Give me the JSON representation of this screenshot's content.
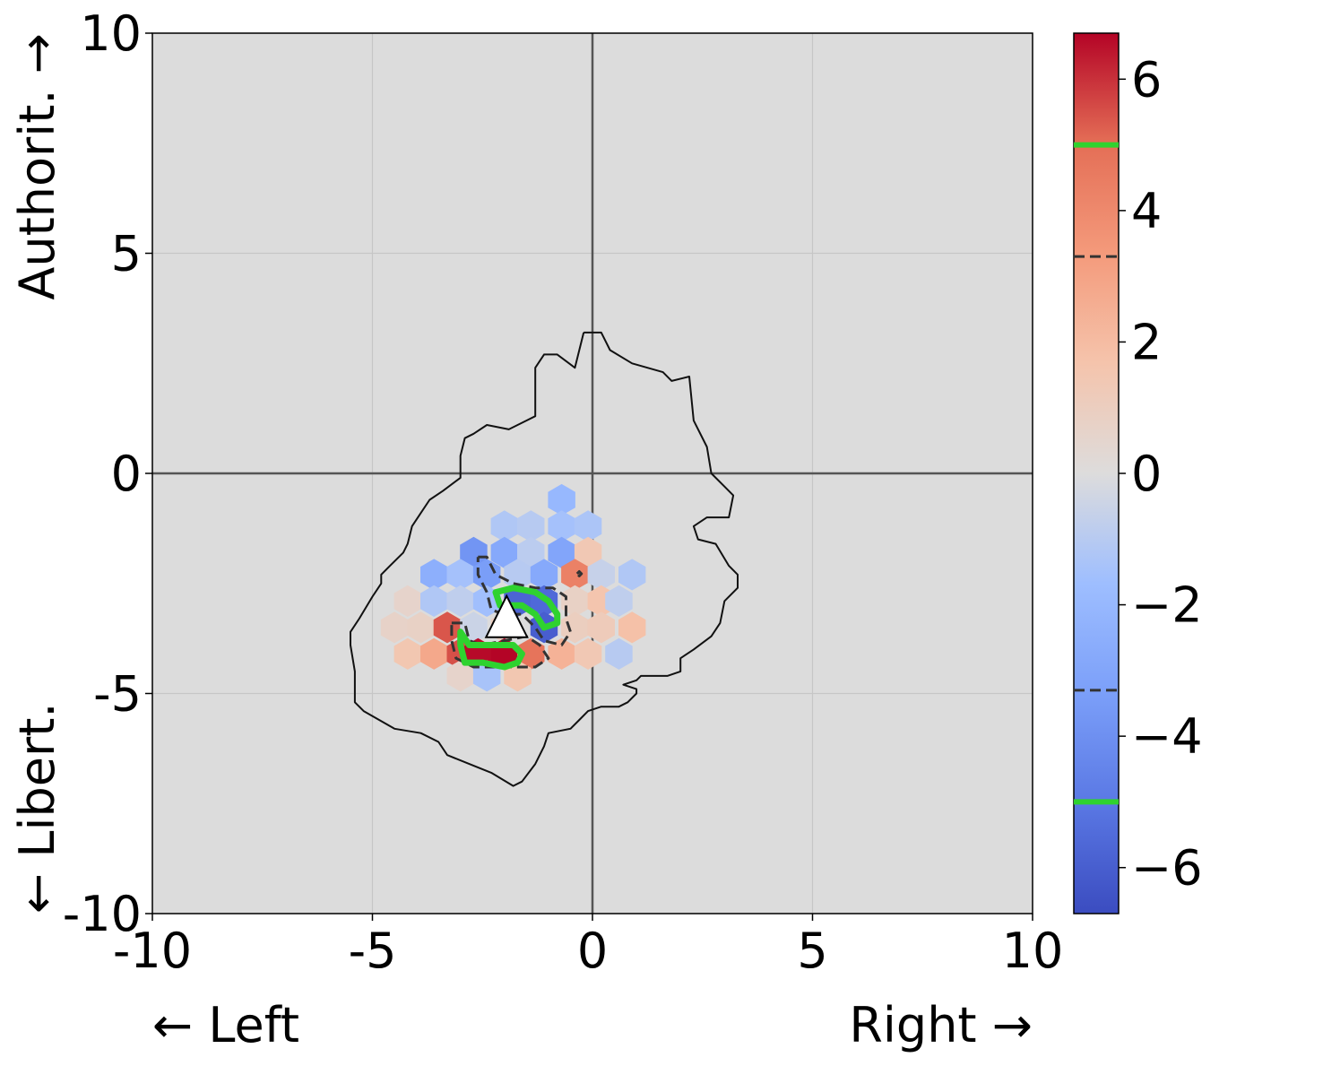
{
  "chart_data": {
    "type": "heatmap",
    "subtype": "hexbin",
    "title": "",
    "xlabel_left": "← Left",
    "xlabel_right": "Right →",
    "ylabel_top": "Authorit. →",
    "ylabel_bottom": "← Libert.",
    "xlim": [
      -10,
      10
    ],
    "ylim": [
      -10,
      10
    ],
    "x_ticks": [
      -10,
      -5,
      0,
      5,
      10
    ],
    "y_ticks": [
      -10,
      -5,
      0,
      5,
      10
    ],
    "x_tick_labels": [
      "-10",
      "-5",
      "0",
      "5",
      "10"
    ],
    "y_tick_labels": [
      "-10",
      "-5",
      "0",
      "5",
      "10"
    ],
    "grid": true,
    "background": "#dcdcdc",
    "colormap": "coolwarm",
    "colorbar": {
      "range": [
        -6.7,
        6.7
      ],
      "ticks": [
        6,
        4,
        2,
        0,
        -2,
        -4,
        -6
      ],
      "tick_labels": [
        "6",
        "4",
        "2",
        "0",
        "−2",
        "−4",
        "−6"
      ],
      "dashed_levels": [
        3.3,
        -3.3
      ],
      "green_levels": [
        5.0,
        -5.0
      ]
    },
    "hexbin": {
      "gridsize_dx": 0.62,
      "cells": [
        {
          "x": -0.7,
          "y": -0.6,
          "v": -2.0
        },
        {
          "x": -2.0,
          "y": -1.2,
          "v": -1.2
        },
        {
          "x": -1.4,
          "y": -1.2,
          "v": -1.0
        },
        {
          "x": -0.7,
          "y": -1.2,
          "v": -1.5
        },
        {
          "x": -0.1,
          "y": -1.2,
          "v": -1.3
        },
        {
          "x": -2.7,
          "y": -1.8,
          "v": -3.8
        },
        {
          "x": -2.0,
          "y": -1.8,
          "v": -2.8
        },
        {
          "x": -1.4,
          "y": -1.8,
          "v": -0.9
        },
        {
          "x": -0.7,
          "y": -1.8,
          "v": -3.0
        },
        {
          "x": -0.1,
          "y": -1.8,
          "v": 1.4
        },
        {
          "x": -3.6,
          "y": -2.3,
          "v": -2.5
        },
        {
          "x": -3.0,
          "y": -2.3,
          "v": -1.5
        },
        {
          "x": -2.4,
          "y": -2.3,
          "v": -3.4
        },
        {
          "x": -1.7,
          "y": -2.3,
          "v": -1.0
        },
        {
          "x": -1.1,
          "y": -2.3,
          "v": -2.8
        },
        {
          "x": -0.4,
          "y": -2.3,
          "v": 4.3
        },
        {
          "x": 0.2,
          "y": -2.3,
          "v": -0.6
        },
        {
          "x": 0.9,
          "y": -2.3,
          "v": -1.2
        },
        {
          "x": -4.2,
          "y": -2.9,
          "v": 0.6
        },
        {
          "x": -3.6,
          "y": -2.9,
          "v": -1.2
        },
        {
          "x": -3.0,
          "y": -2.9,
          "v": -0.8
        },
        {
          "x": -2.4,
          "y": -2.9,
          "v": -1.6
        },
        {
          "x": -1.7,
          "y": -2.9,
          "v": -5.8
        },
        {
          "x": -1.1,
          "y": -2.9,
          "v": -5.6
        },
        {
          "x": -0.4,
          "y": -2.9,
          "v": 0.8
        },
        {
          "x": 0.2,
          "y": -2.9,
          "v": 1.6
        },
        {
          "x": 0.6,
          "y": -2.9,
          "v": -0.8
        },
        {
          "x": -4.5,
          "y": -3.5,
          "v": 0.7
        },
        {
          "x": -3.9,
          "y": -3.5,
          "v": 0.8
        },
        {
          "x": -3.3,
          "y": -3.5,
          "v": 5.4
        },
        {
          "x": -2.7,
          "y": -3.5,
          "v": -0.5
        },
        {
          "x": -2.0,
          "y": -3.5,
          "v": 0.9
        },
        {
          "x": -1.1,
          "y": -3.5,
          "v": -6.0
        },
        {
          "x": -0.4,
          "y": -3.5,
          "v": 1.0
        },
        {
          "x": 0.2,
          "y": -3.5,
          "v": 1.2
        },
        {
          "x": 0.9,
          "y": -3.5,
          "v": 1.8
        },
        {
          "x": -4.2,
          "y": -4.1,
          "v": 1.5
        },
        {
          "x": -3.6,
          "y": -4.1,
          "v": 2.8
        },
        {
          "x": -3.0,
          "y": -4.1,
          "v": 5.5
        },
        {
          "x": -2.6,
          "y": -4.1,
          "v": 6.6
        },
        {
          "x": -2.0,
          "y": -4.1,
          "v": 6.7
        },
        {
          "x": -1.4,
          "y": -4.1,
          "v": 4.8
        },
        {
          "x": -0.7,
          "y": -4.1,
          "v": 2.4
        },
        {
          "x": -0.1,
          "y": -4.1,
          "v": 1.4
        },
        {
          "x": 0.6,
          "y": -4.1,
          "v": -1.0
        },
        {
          "x": -3.0,
          "y": -4.6,
          "v": 0.6
        },
        {
          "x": -2.4,
          "y": -4.6,
          "v": -1.4
        },
        {
          "x": -1.7,
          "y": -4.6,
          "v": 1.5
        }
      ]
    },
    "outline_polygon": [
      [
        -0.2,
        3.2
      ],
      [
        0.2,
        3.2
      ],
      [
        0.4,
        2.8
      ],
      [
        0.9,
        2.5
      ],
      [
        1.6,
        2.3
      ],
      [
        1.8,
        2.1
      ],
      [
        2.2,
        2.2
      ],
      [
        2.3,
        1.2
      ],
      [
        2.6,
        0.6
      ],
      [
        2.7,
        0
      ],
      [
        3.0,
        -0.3
      ],
      [
        3.2,
        -0.5
      ],
      [
        3.1,
        -1.0
      ],
      [
        2.6,
        -1.0
      ],
      [
        2.3,
        -1.2
      ],
      [
        2.4,
        -1.5
      ],
      [
        2.8,
        -1.6
      ],
      [
        3.1,
        -2.1
      ],
      [
        3.3,
        -2.3
      ],
      [
        3.3,
        -2.6
      ],
      [
        3.0,
        -2.9
      ],
      [
        2.9,
        -3.4
      ],
      [
        2.7,
        -3.7
      ],
      [
        2.3,
        -4.0
      ],
      [
        2.0,
        -4.2
      ],
      [
        2.0,
        -4.5
      ],
      [
        1.7,
        -4.6
      ],
      [
        1.1,
        -4.6
      ],
      [
        1.0,
        -4.7
      ],
      [
        0.7,
        -4.8
      ],
      [
        1.0,
        -4.9
      ],
      [
        1.0,
        -5.0
      ],
      [
        0.8,
        -5.2
      ],
      [
        0.6,
        -5.3
      ],
      [
        0.2,
        -5.3
      ],
      [
        -0.1,
        -5.4
      ],
      [
        -0.3,
        -5.6
      ],
      [
        -0.5,
        -5.8
      ],
      [
        -1.0,
        -5.9
      ],
      [
        -1.1,
        -6.2
      ],
      [
        -1.3,
        -6.6
      ],
      [
        -1.6,
        -7.0
      ],
      [
        -1.8,
        -7.1
      ],
      [
        -2.3,
        -6.8
      ],
      [
        -2.8,
        -6.6
      ],
      [
        -3.3,
        -6.4
      ],
      [
        -3.5,
        -6.1
      ],
      [
        -3.9,
        -5.9
      ],
      [
        -4.5,
        -5.8
      ],
      [
        -5.2,
        -5.4
      ],
      [
        -5.4,
        -5.2
      ],
      [
        -5.4,
        -4.5
      ],
      [
        -5.5,
        -3.9
      ],
      [
        -5.5,
        -3.6
      ],
      [
        -5.3,
        -3.3
      ],
      [
        -5.0,
        -2.8
      ],
      [
        -4.8,
        -2.5
      ],
      [
        -4.8,
        -2.3
      ],
      [
        -4.6,
        -2.1
      ],
      [
        -4.3,
        -1.8
      ],
      [
        -4.2,
        -1.6
      ],
      [
        -4.1,
        -1.2
      ],
      [
        -3.9,
        -0.9
      ],
      [
        -3.7,
        -0.6
      ],
      [
        -3.4,
        -0.4
      ],
      [
        -3.0,
        -0.1
      ],
      [
        -3.0,
        0.4
      ],
      [
        -2.9,
        0.8
      ],
      [
        -2.7,
        0.9
      ],
      [
        -2.4,
        1.1
      ],
      [
        -1.9,
        1.0
      ],
      [
        -1.5,
        1.2
      ],
      [
        -1.3,
        1.3
      ],
      [
        -1.3,
        2.4
      ],
      [
        -1.1,
        2.7
      ],
      [
        -0.8,
        2.7
      ],
      [
        -0.4,
        2.4
      ],
      [
        -0.3,
        2.8
      ],
      [
        -0.2,
        3.2
      ]
    ],
    "contours": [
      {
        "style": "dashed",
        "level": -3.3,
        "points": [
          [
            -2.6,
            -1.9
          ],
          [
            -2.4,
            -1.9
          ],
          [
            -2.2,
            -2.3
          ],
          [
            -1.8,
            -2.5
          ],
          [
            -1.3,
            -2.6
          ],
          [
            -0.9,
            -2.6
          ],
          [
            -0.6,
            -2.8
          ],
          [
            -0.6,
            -3.3
          ],
          [
            -0.5,
            -3.6
          ],
          [
            -0.7,
            -3.9
          ],
          [
            -1.1,
            -3.8
          ],
          [
            -1.3,
            -3.5
          ],
          [
            -1.6,
            -3.2
          ],
          [
            -2.0,
            -3.2
          ],
          [
            -2.3,
            -3.1
          ],
          [
            -2.4,
            -2.7
          ],
          [
            -2.6,
            -2.3
          ],
          [
            -2.6,
            -1.9
          ]
        ]
      },
      {
        "style": "green",
        "level": -5.0,
        "points": [
          [
            -2.2,
            -2.7
          ],
          [
            -1.8,
            -2.6
          ],
          [
            -1.3,
            -2.7
          ],
          [
            -1.0,
            -2.9
          ],
          [
            -0.8,
            -3.2
          ],
          [
            -0.8,
            -3.4
          ],
          [
            -1.1,
            -3.5
          ],
          [
            -1.3,
            -3.2
          ],
          [
            -1.6,
            -3.0
          ],
          [
            -2.1,
            -3.0
          ],
          [
            -2.2,
            -2.7
          ]
        ]
      },
      {
        "style": "dashed",
        "level": 3.3,
        "points": [
          [
            -3.2,
            -3.4
          ],
          [
            -2.9,
            -3.4
          ],
          [
            -2.8,
            -3.8
          ],
          [
            -2.5,
            -3.9
          ],
          [
            -2.0,
            -3.8
          ],
          [
            -1.5,
            -3.7
          ],
          [
            -1.2,
            -3.9
          ],
          [
            -1.0,
            -4.2
          ],
          [
            -1.3,
            -4.4
          ],
          [
            -1.8,
            -4.4
          ],
          [
            -2.2,
            -4.4
          ],
          [
            -2.7,
            -4.4
          ],
          [
            -3.1,
            -4.2
          ],
          [
            -3.2,
            -3.8
          ],
          [
            -3.2,
            -3.4
          ]
        ]
      },
      {
        "style": "green",
        "level": 5.0,
        "points": [
          [
            -3.0,
            -3.6
          ],
          [
            -2.8,
            -3.9
          ],
          [
            -2.4,
            -3.9
          ],
          [
            -1.8,
            -3.9
          ],
          [
            -1.6,
            -4.1
          ],
          [
            -1.7,
            -4.3
          ],
          [
            -2.0,
            -4.4
          ],
          [
            -2.5,
            -4.3
          ],
          [
            -2.9,
            -4.3
          ],
          [
            -3.0,
            -3.9
          ],
          [
            -3.0,
            -3.6
          ]
        ]
      },
      {
        "style": "dashed",
        "level": 3.3,
        "points": [
          [
            -0.35,
            -2.28
          ],
          [
            -0.3,
            -2.23
          ],
          [
            -0.25,
            -2.28
          ],
          [
            -0.3,
            -2.33
          ],
          [
            -0.35,
            -2.28
          ]
        ]
      }
    ],
    "marker": {
      "type": "triangle",
      "x": -1.95,
      "y": -3.3,
      "color": "#ffffff"
    }
  }
}
